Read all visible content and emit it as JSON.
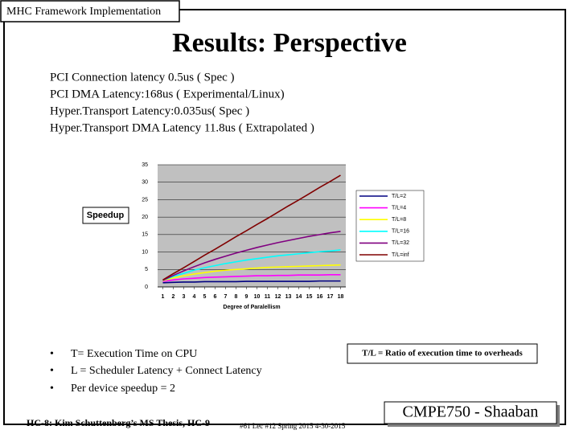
{
  "header": "MHC Framework Implementation",
  "title": "Results: Perspective",
  "lines": [
    "PCI Connection latency 0.5us ( Spec )",
    "PCI DMA Latency:168us ( Experimental/Linux)",
    "Hyper.Transport Latency:0.035us( Spec )",
    "Hyper.Transport DMA Latency 11.8us ( Extrapolated )"
  ],
  "bullets": [
    "T= Execution Time on CPU",
    "L = Scheduler Latency + Connect Latency",
    "Per device speedup = 2"
  ],
  "note": "T/L = Ratio of execution time to overheads",
  "footer_left": "HC-8: Kim Schuttenberg’s MS Thesis, HC-9",
  "footer_mid": "#61 Lec #12 Spring 2015 4-30-2015",
  "footer_right": "CMPE750 - Shaaban",
  "chart_data": {
    "type": "line",
    "y_label": "Speedup",
    "x_label": "Degree of Paralellism",
    "x": [
      1,
      2,
      3,
      4,
      5,
      6,
      7,
      8,
      9,
      10,
      11,
      12,
      13,
      14,
      15,
      16,
      17,
      18
    ],
    "xlim": [
      0.5,
      18.5
    ],
    "xticks": [
      1,
      2,
      3,
      4,
      5,
      6,
      7,
      8,
      9,
      10,
      11,
      12,
      13,
      14,
      15,
      16,
      17,
      18
    ],
    "ylim": [
      0,
      35
    ],
    "yticks": [
      0,
      5,
      10,
      15,
      20,
      25,
      30,
      35
    ],
    "grid": true,
    "legend": "right",
    "series": [
      {
        "name": "T/L=2",
        "color": "#000080",
        "values": [
          1.2,
          1.3,
          1.4,
          1.4,
          1.5,
          1.5,
          1.5,
          1.5,
          1.6,
          1.6,
          1.6,
          1.6,
          1.6,
          1.6,
          1.6,
          1.7,
          1.7,
          1.7
        ]
      },
      {
        "name": "T/L=4",
        "color": "#ff00ff",
        "values": [
          1.6,
          2.0,
          2.3,
          2.5,
          2.7,
          2.8,
          2.9,
          3.0,
          3.1,
          3.2,
          3.2,
          3.3,
          3.3,
          3.4,
          3.4,
          3.4,
          3.5,
          3.5
        ]
      },
      {
        "name": "T/L=8",
        "color": "#ffff00",
        "values": [
          1.8,
          2.6,
          3.2,
          3.7,
          4.1,
          4.5,
          4.8,
          5.0,
          5.2,
          5.4,
          5.6,
          5.7,
          5.8,
          5.9,
          6.0,
          6.1,
          6.2,
          6.3
        ]
      },
      {
        "name": "T/L=16",
        "color": "#00ffff",
        "values": [
          1.9,
          3.0,
          3.9,
          4.8,
          5.5,
          6.1,
          6.7,
          7.2,
          7.7,
          8.1,
          8.5,
          8.9,
          9.2,
          9.5,
          9.8,
          10.1,
          10.3,
          10.6
        ]
      },
      {
        "name": "T/L=32",
        "color": "#800080",
        "values": [
          1.9,
          3.3,
          4.6,
          5.8,
          6.9,
          7.9,
          8.8,
          9.7,
          10.5,
          11.3,
          12.0,
          12.7,
          13.3,
          13.9,
          14.5,
          15.0,
          15.5,
          15.9
        ]
      },
      {
        "name": "T/L=inf",
        "color": "#800000",
        "values": [
          2,
          3.8,
          5.5,
          7.3,
          9.1,
          10.8,
          12.6,
          14.4,
          16.1,
          17.9,
          19.6,
          21.4,
          23.2,
          24.9,
          26.7,
          28.5,
          30.2,
          32
        ]
      }
    ]
  }
}
